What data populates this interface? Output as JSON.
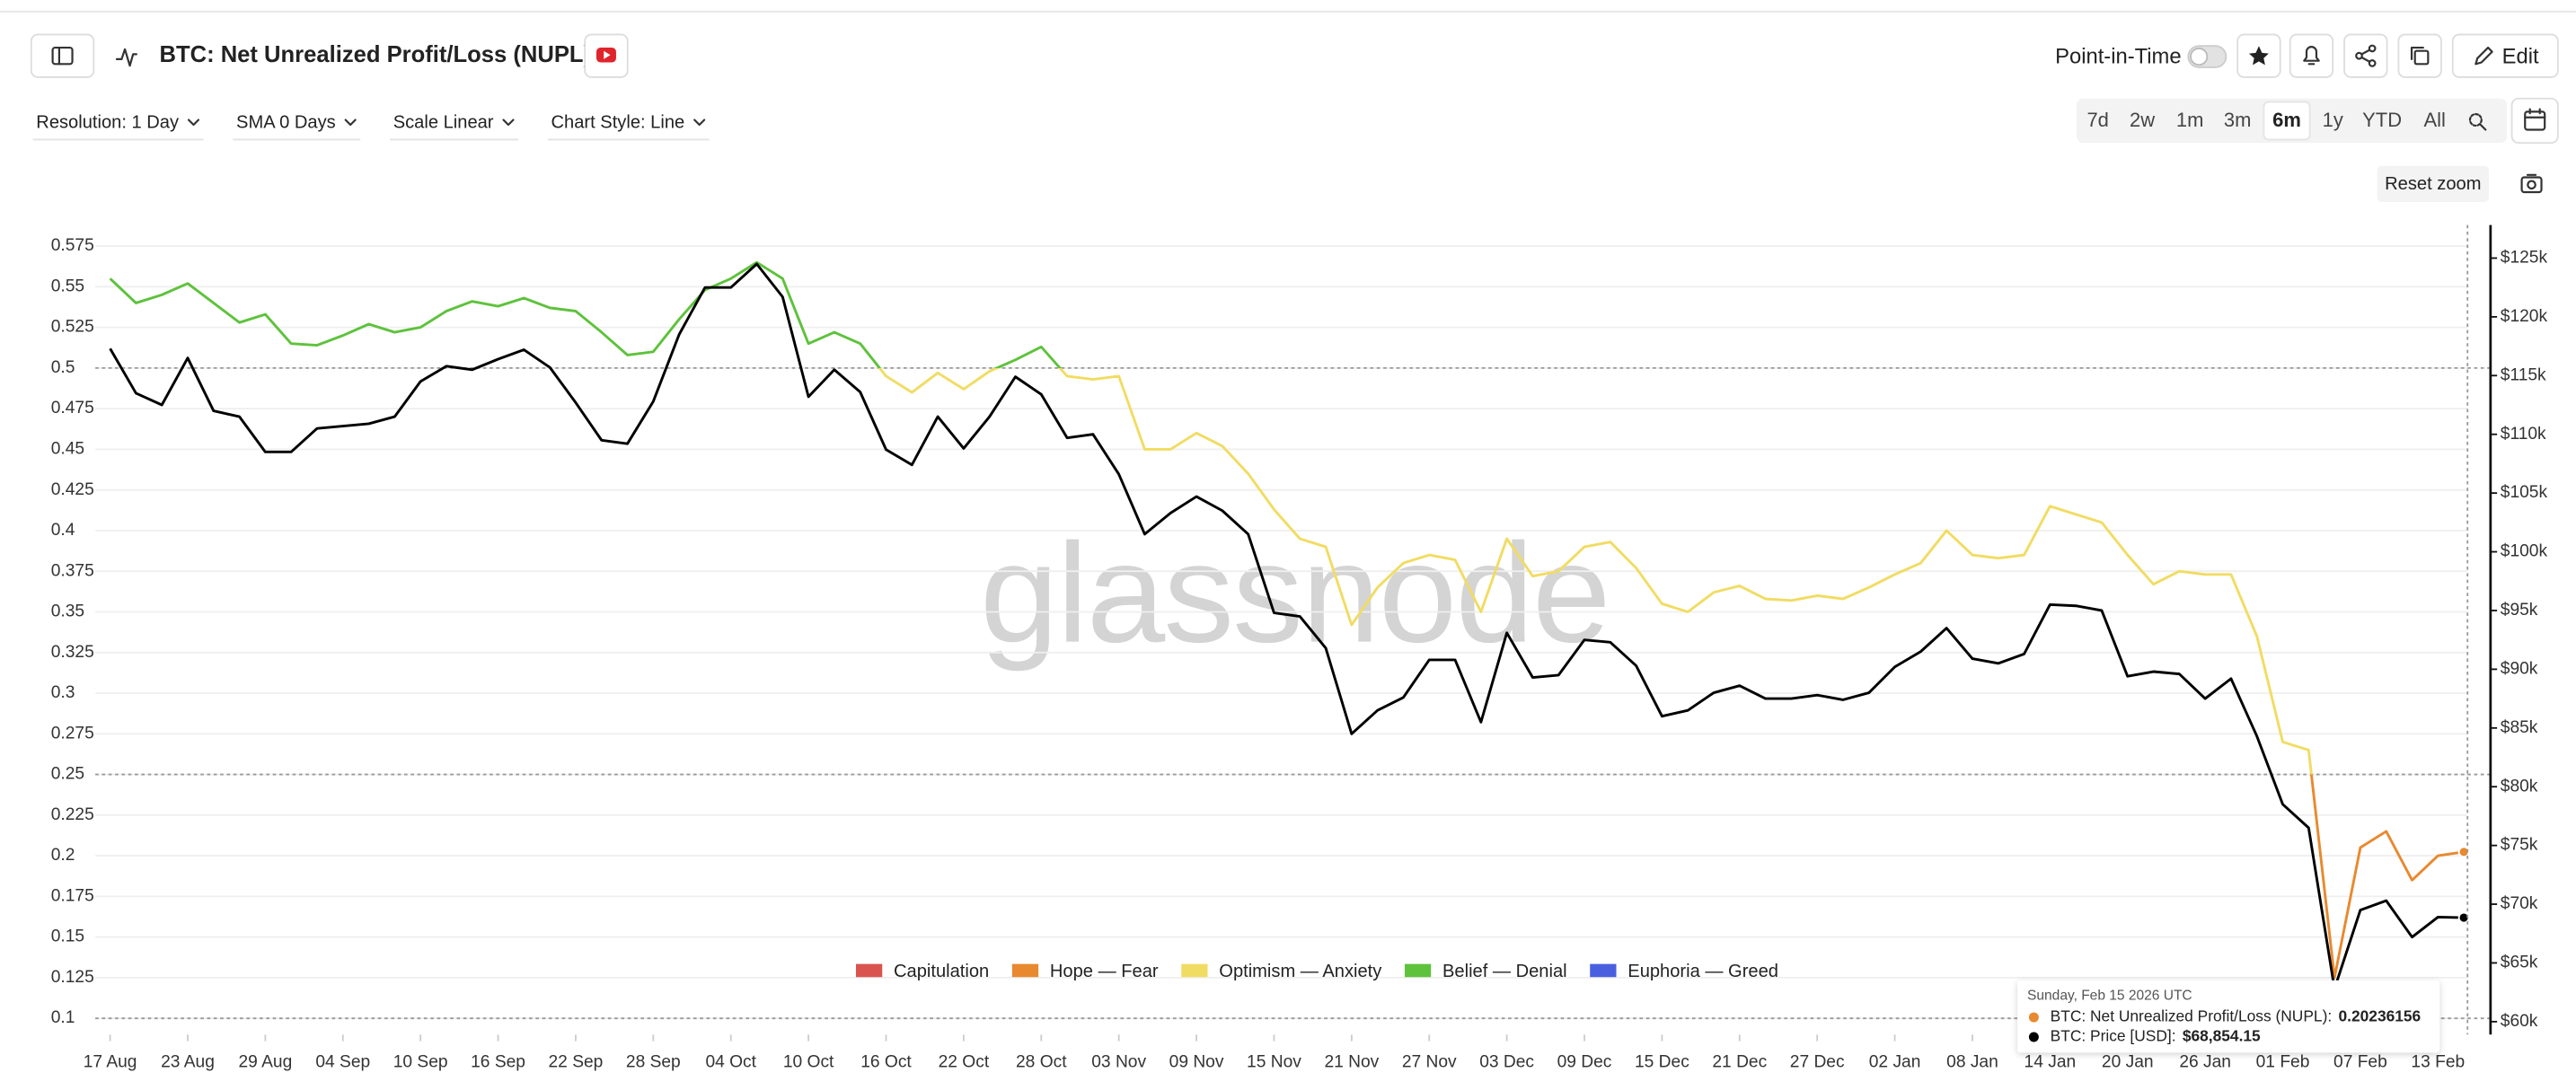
{
  "header": {
    "title": "BTC: Net Unrealized Profit/Loss (NUPL)",
    "point_in_time": "Point-in-Time",
    "edit": "Edit"
  },
  "toolbar": {
    "dropdowns": [
      "Resolution: 1 Day",
      "SMA 0 Days",
      "Scale Linear",
      "Chart Style: Line"
    ],
    "ranges": [
      "7d",
      "2w",
      "1m",
      "3m",
      "6m",
      "1y",
      "YTD",
      "All"
    ],
    "selected_range": "6m",
    "reset_zoom": "Reset zoom"
  },
  "watermark": "glassnode",
  "chart_data": {
    "type": "line",
    "categories": [
      "17 Aug",
      null,
      null,
      "23 Aug",
      null,
      null,
      "29 Aug",
      null,
      null,
      "04 Sep",
      null,
      null,
      "10 Sep",
      null,
      null,
      "16 Sep",
      null,
      null,
      "22 Sep",
      null,
      null,
      "28 Sep",
      null,
      null,
      "04 Oct",
      null,
      null,
      "10 Oct",
      null,
      null,
      "16 Oct",
      null,
      null,
      "22 Oct",
      null,
      null,
      "28 Oct",
      null,
      null,
      "03 Nov",
      null,
      null,
      "09 Nov",
      null,
      null,
      "15 Nov",
      null,
      null,
      "21 Nov",
      null,
      null,
      "27 Nov",
      null,
      null,
      "03 Dec",
      null,
      null,
      "09 Dec",
      null,
      null,
      "15 Dec",
      null,
      null,
      "21 Dec",
      null,
      null,
      "27 Dec",
      null,
      null,
      "02 Jan",
      null,
      null,
      "08 Jan",
      null,
      null,
      "14 Jan",
      null,
      null,
      "20 Jan",
      null,
      null,
      "26 Jan",
      null,
      null,
      "01 Feb",
      null,
      null,
      "07 Feb",
      null,
      null,
      "13 Feb",
      null
    ],
    "series": [
      {
        "name": "BTC: Net Unrealized Profit/Loss (NUPL)",
        "values": [
          0.555,
          0.54,
          0.545,
          0.552,
          0.54,
          0.528,
          0.533,
          0.515,
          0.514,
          0.52,
          0.527,
          0.522,
          0.525,
          0.535,
          0.541,
          0.538,
          0.543,
          0.537,
          0.535,
          0.522,
          0.508,
          0.51,
          0.53,
          0.548,
          0.555,
          0.565,
          0.555,
          0.515,
          0.522,
          0.515,
          0.495,
          0.485,
          0.497,
          0.487,
          0.498,
          0.505,
          0.513,
          0.495,
          0.493,
          0.495,
          0.45,
          0.45,
          0.46,
          0.452,
          0.435,
          0.413,
          0.395,
          0.39,
          0.342,
          0.365,
          0.38,
          0.385,
          0.382,
          0.35,
          0.395,
          0.372,
          0.375,
          0.39,
          0.393,
          0.377,
          0.355,
          0.35,
          0.362,
          0.366,
          0.358,
          0.357,
          0.36,
          0.358,
          0.365,
          0.373,
          0.38,
          0.4,
          0.385,
          0.383,
          0.385,
          0.415,
          0.41,
          0.405,
          0.385,
          0.367,
          0.375,
          0.373,
          0.373,
          0.335,
          0.27,
          0.265,
          0.125,
          0.205,
          0.215,
          0.185,
          0.2,
          0.20236156
        ]
      },
      {
        "name": "BTC: Price [USD]",
        "color": "#000000",
        "axis": "y2",
        "values": [
          117300,
          113500,
          112500,
          116500,
          112000,
          111500,
          108500,
          108500,
          110500,
          110700,
          110900,
          111500,
          114500,
          115800,
          115500,
          116400,
          117200,
          115700,
          112700,
          109500,
          109200,
          112800,
          118500,
          122500,
          122500,
          124500,
          121700,
          113200,
          115500,
          113600,
          108700,
          107400,
          111500,
          108800,
          111500,
          114900,
          113400,
          109700,
          110000,
          106600,
          101500,
          103300,
          104700,
          103500,
          101500,
          94800,
          94500,
          91800,
          84500,
          86500,
          87600,
          90800,
          90800,
          85500,
          93100,
          89300,
          89500,
          92500,
          92300,
          90300,
          86000,
          86500,
          88000,
          88600,
          87500,
          87500,
          87800,
          87400,
          88000,
          90200,
          91500,
          93500,
          90900,
          90500,
          91300,
          95500,
          95400,
          95000,
          89400,
          89800,
          89600,
          87500,
          89200,
          84300,
          78500,
          76500,
          62800,
          69500,
          70300,
          67200,
          68900,
          68854.15
        ]
      }
    ],
    "ylim": [
      0.09,
      0.59
    ],
    "yticks": [
      0.1,
      0.125,
      0.15,
      0.175,
      0.2,
      0.225,
      0.25,
      0.275,
      0.3,
      0.325,
      0.35,
      0.375,
      0.4,
      0.425,
      0.45,
      0.475,
      0.5,
      0.525,
      0.55,
      0.575
    ],
    "y2lim": [
      58900,
      128100
    ],
    "y2ticks": [
      {
        "value": 60000,
        "label": "$60k"
      },
      {
        "value": 65000,
        "label": "$65k"
      },
      {
        "value": 70000,
        "label": "$70k"
      },
      {
        "value": 75000,
        "label": "$75k"
      },
      {
        "value": 80000,
        "label": "$80k"
      },
      {
        "value": 85000,
        "label": "$85k"
      },
      {
        "value": 90000,
        "label": "$90k"
      },
      {
        "value": 95000,
        "label": "$95k"
      },
      {
        "value": 100000,
        "label": "$100k"
      },
      {
        "value": 105000,
        "label": "$105k"
      },
      {
        "value": 110000,
        "label": "$110k"
      },
      {
        "value": 115000,
        "label": "$115k"
      },
      {
        "value": 120000,
        "label": "$120k"
      },
      {
        "value": 125000,
        "label": "$125k"
      }
    ],
    "reference_lines": [
      0.5,
      0.25,
      0.1
    ],
    "grid": true,
    "legend": [
      {
        "name": "Capitulation",
        "color": "#d9534f"
      },
      {
        "name": "Hope — Fear",
        "color": "#e8892f"
      },
      {
        "name": "Optimism — Anxiety",
        "color": "#f1dc63"
      },
      {
        "name": "Belief — Denial",
        "color": "#5ec23c"
      },
      {
        "name": "Euphoria — Greed",
        "color": "#4a5fe0"
      }
    ],
    "tooltip": {
      "date": "Sunday, Feb 15 2026 UTC",
      "rows": [
        {
          "label": "BTC: Net Unrealized Profit/Loss (NUPL):",
          "value": "0.20236156"
        },
        {
          "label": "BTC: Price [USD]:",
          "value": "$68,854.15"
        }
      ]
    }
  }
}
